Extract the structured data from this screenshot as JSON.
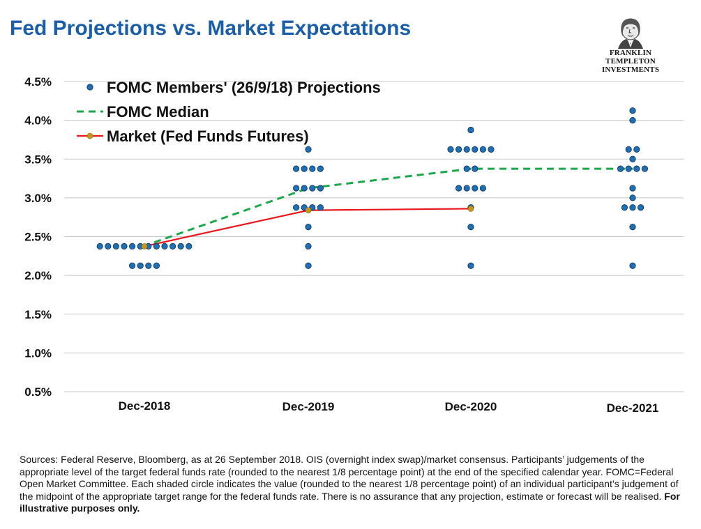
{
  "header": {
    "title": "Fed Projections vs. Market Expectations",
    "logo_line1": "FRANKLIN TEMPLETON",
    "logo_line2": "INVESTMENTS"
  },
  "colors": {
    "title": "#1a5ea8",
    "dot_fill": "#1f6fb5",
    "dot_stroke": "#0d2f55",
    "median": "#1aa84a",
    "market": "#e8151b",
    "market_marker": "#c8961a",
    "grid": "#c8c8c8"
  },
  "chart_data": {
    "type": "scatter",
    "title": "",
    "categories": [
      "Dec-2018",
      "Dec-2019",
      "Dec-2020",
      "Dec-2021"
    ],
    "y_ticks": [
      "0.5%",
      "1.0%",
      "1.5%",
      "2.0%",
      "2.5%",
      "3.0%",
      "3.5%",
      "4.0%",
      "4.5%"
    ],
    "ylim": [
      0.5,
      4.5
    ],
    "grid": true,
    "legend_position": "top-left",
    "series": [
      {
        "name": "FOMC Members' (26/9/18) Projections",
        "kind": "dots",
        "points": [
          {
            "category": "Dec-2018",
            "values": [
              2.375,
              2.375,
              2.375,
              2.375,
              2.375,
              2.375,
              2.375,
              2.375,
              2.375,
              2.375,
              2.375,
              2.375,
              2.125,
              2.125,
              2.125,
              2.125
            ]
          },
          {
            "category": "Dec-2019",
            "values": [
              3.625,
              3.375,
              3.375,
              3.375,
              3.375,
              3.125,
              3.125,
              3.125,
              3.125,
              2.875,
              2.875,
              2.875,
              2.875,
              2.625,
              2.375,
              2.125
            ]
          },
          {
            "category": "Dec-2020",
            "values": [
              3.875,
              3.625,
              3.625,
              3.625,
              3.625,
              3.625,
              3.625,
              3.375,
              3.375,
              3.125,
              3.125,
              3.125,
              3.125,
              2.875,
              2.625,
              2.125
            ]
          },
          {
            "category": "Dec-2021",
            "values": [
              4.125,
              4.0,
              3.625,
              3.625,
              3.5,
              3.375,
              3.375,
              3.375,
              3.375,
              3.125,
              3.0,
              2.875,
              2.875,
              2.875,
              2.625,
              2.125
            ]
          }
        ]
      },
      {
        "name": "FOMC Median",
        "kind": "dashed-line",
        "values": [
          2.375,
          3.125,
          3.375,
          3.375
        ]
      },
      {
        "name": "Market (Fed Funds Futures)",
        "kind": "line-markers",
        "values": [
          2.375,
          2.84,
          2.86,
          null
        ]
      }
    ]
  },
  "footnote": {
    "text": "Sources: Federal Reserve, Bloomberg, as at 26 September 2018. OIS (overnight index swap)/market consensus. Participants’ judgements of the appropriate level of the target federal funds rate (rounded to the nearest 1/8 percentage point) at the end of the specified calendar year. FOMC=Federal Open Market Committee. Each shaded circle indicates the value (rounded to the nearest 1/8 percentage point) of an individual participant’s judgement of the midpoint of the appropriate target range for the federal funds rate. There is no assurance that any projection, estimate or forecast will be realised.",
    "emphasis": "For illustrative purposes only."
  }
}
